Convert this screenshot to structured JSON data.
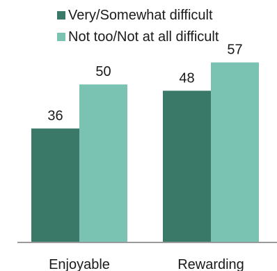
{
  "chart_data": {
    "type": "bar",
    "categories": [
      "Enjoyable",
      "Rewarding"
    ],
    "series": [
      {
        "name": "Very/Somewhat difficult",
        "color": "#3a7868",
        "values": [
          36,
          48
        ]
      },
      {
        "name": "Not too/Not at all difficult",
        "color": "#7ac3b2",
        "values": [
          50,
          57
        ]
      }
    ],
    "ylim": [
      0,
      64
    ],
    "legend": "top",
    "grid": false,
    "data_labels": true
  }
}
